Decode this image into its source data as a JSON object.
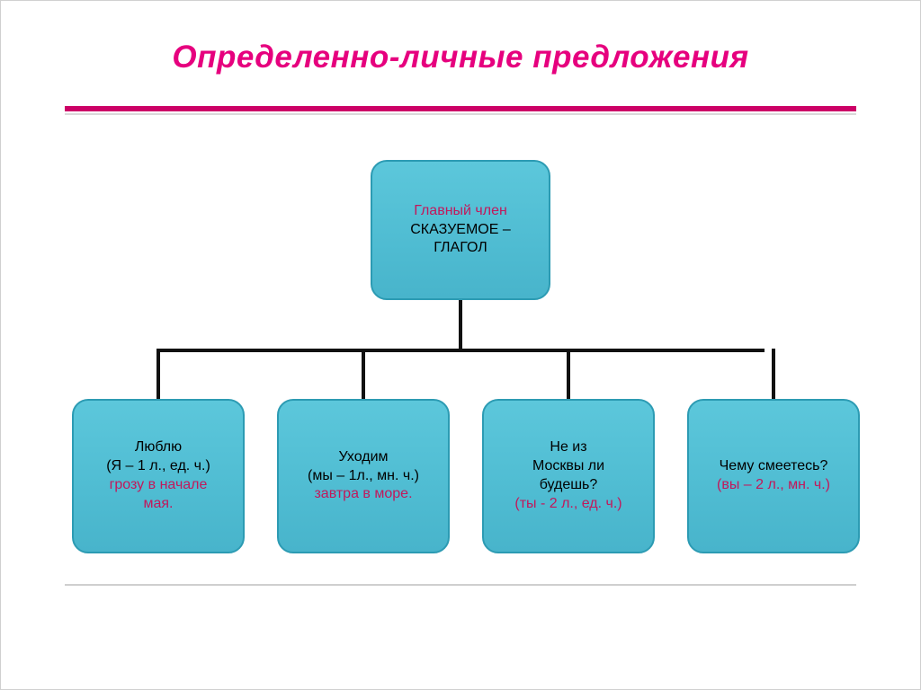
{
  "title": {
    "text": "Определенно-личные предложения",
    "color": "#e6007e"
  },
  "colors": {
    "rule_primary": "#cc0066",
    "rule_secondary": "#cfcfcf",
    "node_border": "#2c9bb3",
    "node_bg_top": "#5cc7db",
    "node_bg_bottom": "#48b4cb",
    "connector": "#111111",
    "emph": "#c2185b",
    "background": "#ffffff"
  },
  "diagram": {
    "type": "tree",
    "root": {
      "line1": "Главный член",
      "line2": "СКАЗУЕМОЕ –",
      "line3": "ГЛАГОЛ"
    },
    "leaves": [
      {
        "line1": "Люблю",
        "meta": "(Я – 1 л., ед. ч.)",
        "line3a": "грозу в начале",
        "line3b": "мая."
      },
      {
        "line1": "Уходим",
        "meta": "(мы – 1л., мн. ч.)",
        "line3a": "завтра в море.",
        "line3b": ""
      },
      {
        "line1a": "Не из",
        "line1b": "Москвы ли",
        "line1c": "будешь?",
        "meta": "(ты - 2 л., ед. ч.)"
      },
      {
        "line1": "Чему смеетесь?",
        "meta": "(вы – 2 л., мн. ч.)"
      }
    ]
  }
}
